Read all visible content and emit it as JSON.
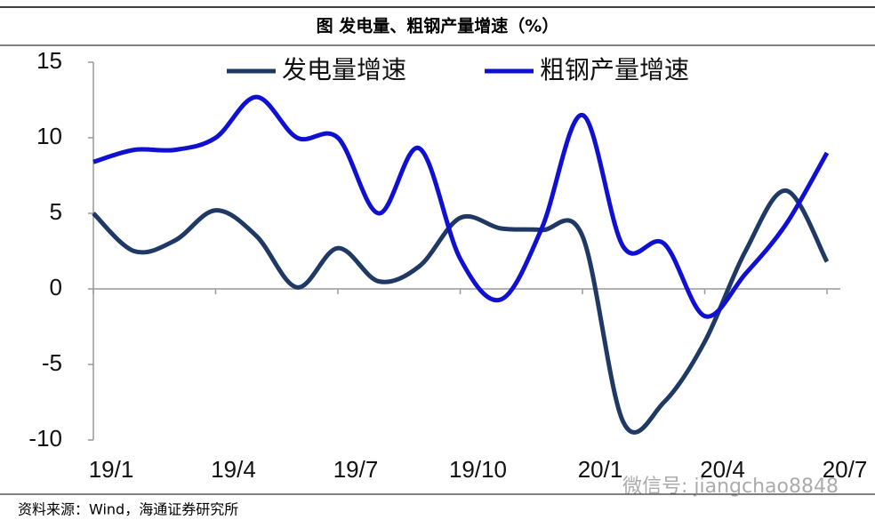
{
  "chart_data": {
    "type": "line",
    "title": "图  发电量、粗钢产量增速（%）",
    "source": "资料来源：Wind，海通证券研究所",
    "watermark": "微信号: jiangchao8848",
    "categories": [
      "19/1",
      null,
      null,
      "19/4",
      null,
      null,
      "19/7",
      null,
      null,
      "19/10",
      null,
      null,
      "20/1",
      null,
      null,
      "20/4",
      null,
      null,
      "20/7"
    ],
    "series": [
      {
        "name": "发电量增速",
        "color": "#1f3864",
        "values": [
          5.0,
          2.5,
          3.2,
          5.2,
          3.5,
          0.1,
          2.7,
          0.5,
          1.5,
          4.7,
          4.0,
          3.9,
          3.5,
          -8.8,
          -7.5,
          -3.5,
          2.5,
          6.5,
          1.8
        ]
      },
      {
        "name": "粗钢产量增速",
        "color": "#1010d0",
        "values": [
          8.4,
          9.2,
          9.2,
          10.0,
          12.7,
          10.0,
          10.0,
          5.0,
          9.3,
          2.0,
          -0.7,
          4.0,
          11.5,
          2.8,
          3.0,
          -1.8,
          1.0,
          4.3,
          9.0
        ]
      }
    ],
    "ylim": [
      -10,
      15
    ],
    "yticks": [
      15,
      10,
      5,
      0,
      -5,
      -10
    ],
    "legend": "top"
  }
}
